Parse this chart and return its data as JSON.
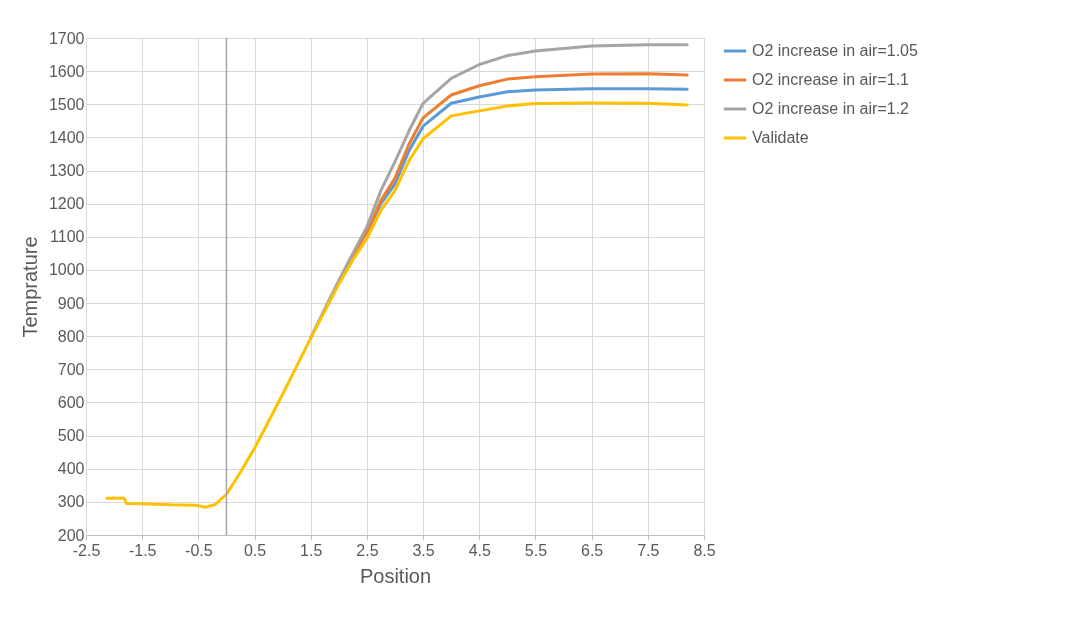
{
  "chart_data": {
    "type": "line",
    "xlabel": "Position",
    "ylabel": "Temprature",
    "xlim": [
      -2.5,
      8.5
    ],
    "xticks": [
      -2.5,
      -1.5,
      -0.5,
      0.5,
      1.5,
      2.5,
      3.5,
      4.5,
      5.5,
      6.5,
      7.5,
      8.5
    ],
    "ylim": [
      200,
      1700
    ],
    "yticks": [
      200,
      300,
      400,
      500,
      600,
      700,
      800,
      900,
      1000,
      1100,
      1200,
      1300,
      1400,
      1500,
      1600,
      1700
    ],
    "grid": true,
    "legend": "right",
    "marker": "none",
    "line_style": "solid",
    "ref_lines": [
      {
        "axis": "x",
        "value": 0,
        "color": "#a6a6a6"
      }
    ],
    "x": [
      -2.13,
      -1.82,
      -1.78,
      -1.5,
      -1.0,
      -0.55,
      -0.37,
      -0.2,
      0,
      0.25,
      0.5,
      1.0,
      1.5,
      2.0,
      2.25,
      2.5,
      2.75,
      3.0,
      3.25,
      3.5,
      4.0,
      4.5,
      5.0,
      5.5,
      6.5,
      7.5,
      8.2
    ],
    "series": [
      {
        "name": "O2 increase in air=1.05",
        "color": "#5b9bd5",
        "values": [
          null,
          null,
          null,
          null,
          null,
          null,
          null,
          null,
          null,
          null,
          null,
          null,
          null,
          null,
          null,
          1110,
          1200,
          1260,
          1360,
          1434,
          1503,
          1522,
          1538,
          1543,
          1547,
          1547,
          1545
        ]
      },
      {
        "name": "O2 increase in air=1.1",
        "color": "#ed7d31",
        "values": [
          null,
          null,
          null,
          null,
          null,
          null,
          null,
          null,
          null,
          null,
          null,
          null,
          null,
          962,
          1040,
          1115,
          1210,
          1277,
          1380,
          1459,
          1528,
          1556,
          1576,
          1583,
          1591,
          1592,
          1588
        ]
      },
      {
        "name": "O2 increase in air=1.2",
        "color": "#a5a5a5",
        "values": [
          null,
          null,
          null,
          null,
          null,
          null,
          null,
          null,
          null,
          null,
          null,
          null,
          796,
          968,
          1050,
          1130,
          1240,
          1327,
          1420,
          1503,
          1578,
          1620,
          1647,
          1661,
          1676,
          1680,
          1680
        ]
      },
      {
        "name": "Validate",
        "color": "#ffc000",
        "values": [
          311,
          311,
          295,
          294,
          291,
          290,
          284,
          292,
          323,
          390,
          462,
          625,
          794,
          957,
          1030,
          1095,
          1180,
          1240,
          1330,
          1396,
          1465,
          1480,
          1495,
          1502,
          1504,
          1503,
          1498
        ]
      }
    ]
  }
}
